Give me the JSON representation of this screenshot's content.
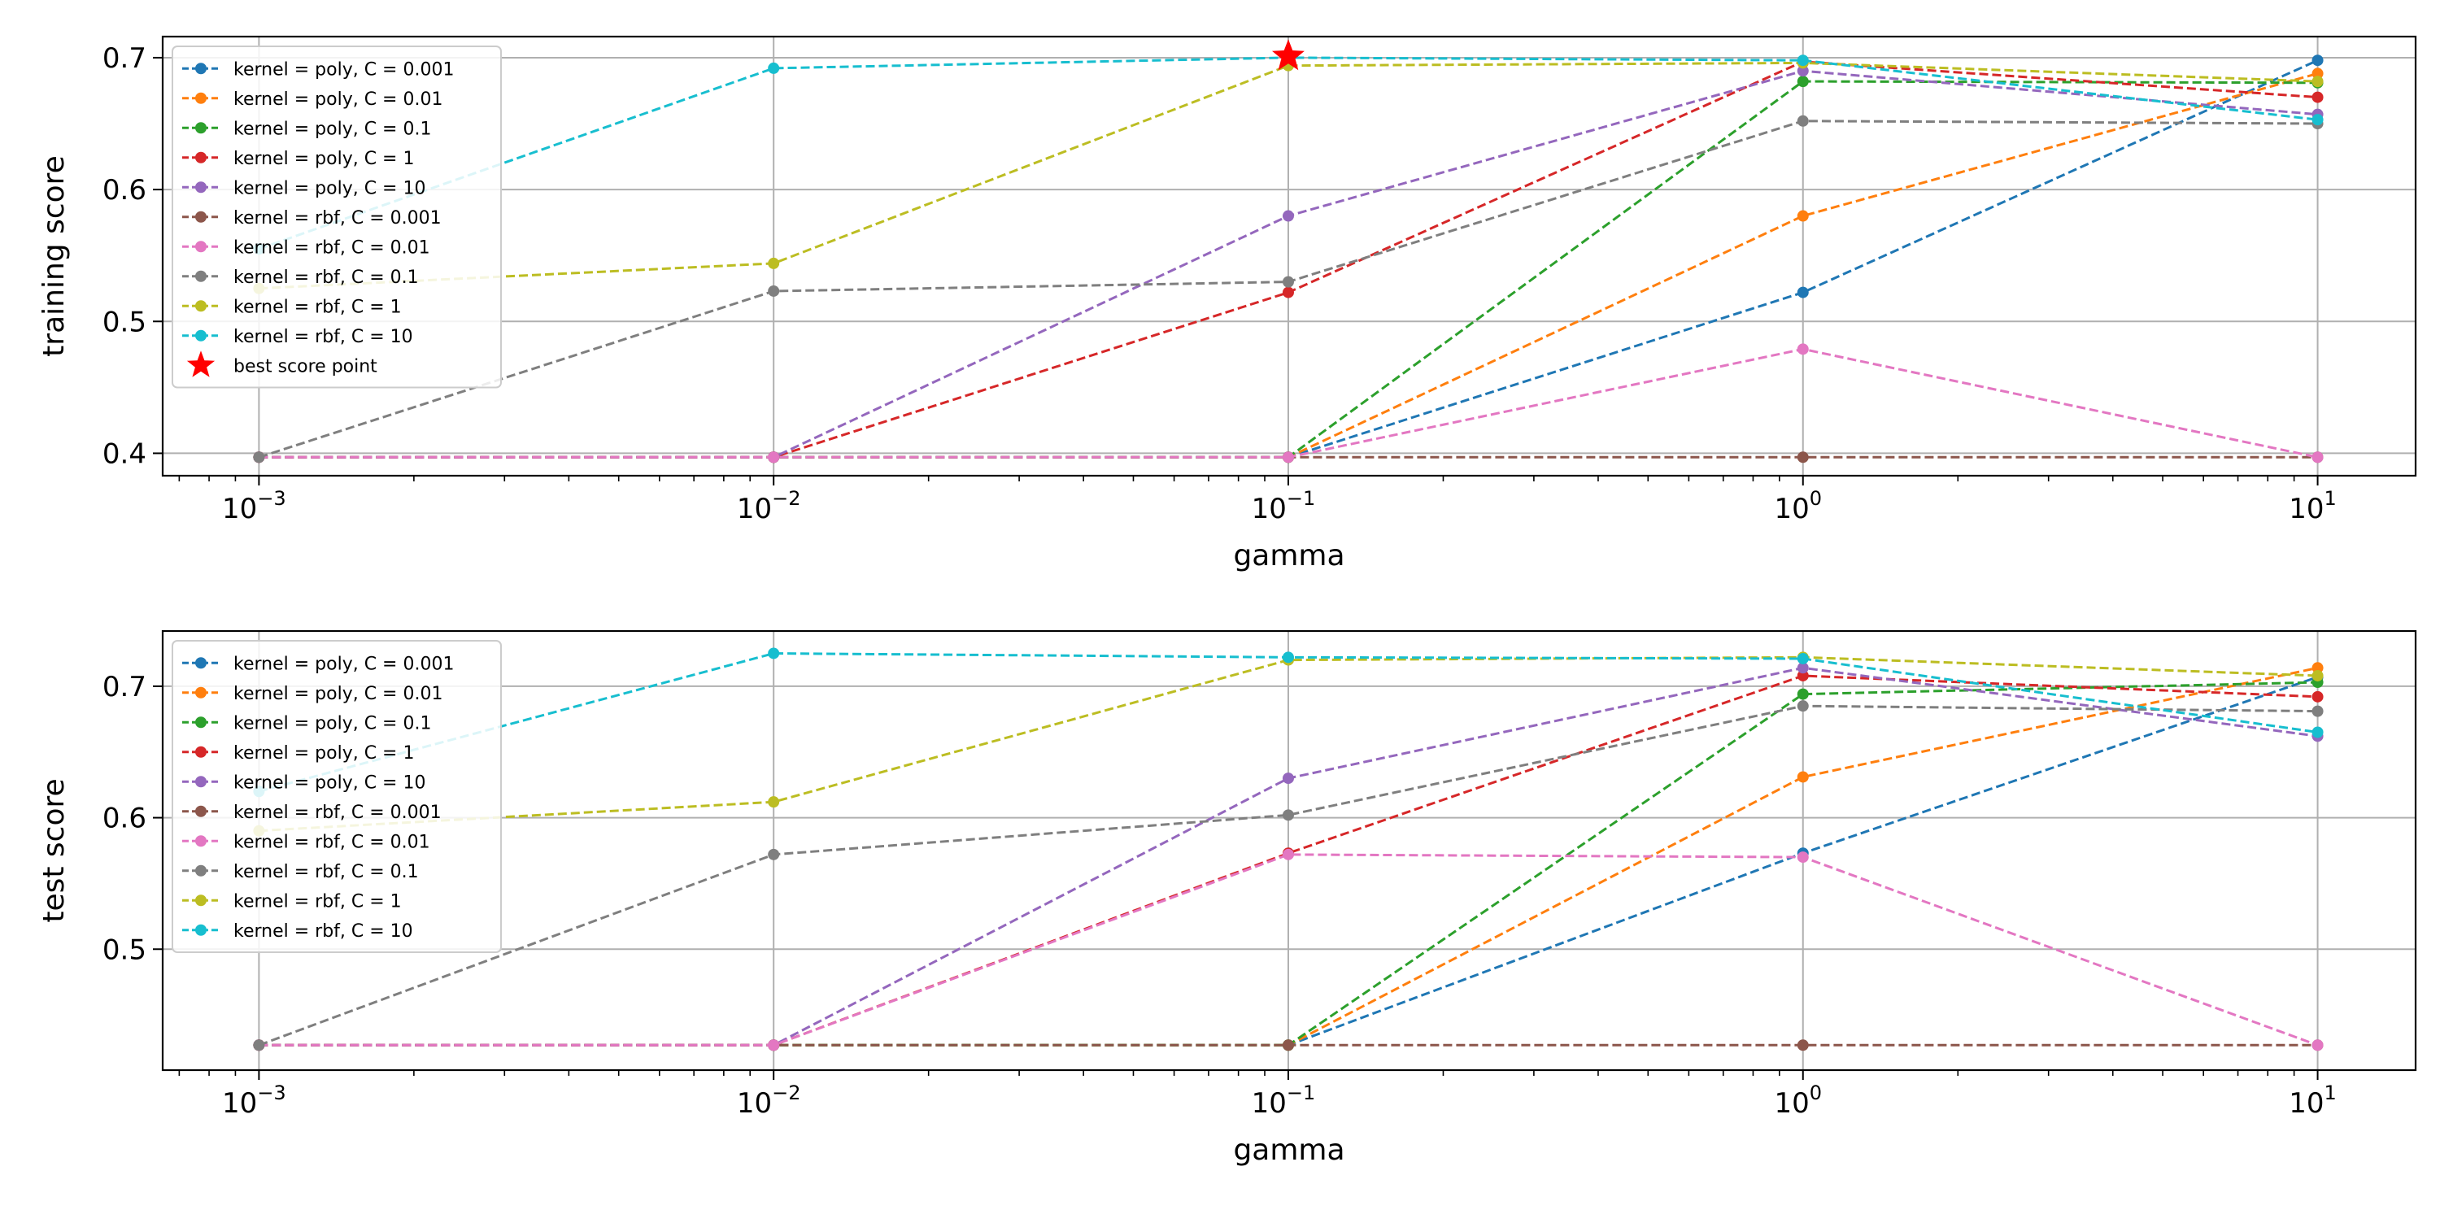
{
  "chart_data": [
    {
      "type": "line",
      "xscale": "log",
      "xlabel": "gamma",
      "ylabel": "training score",
      "xlim": [
        0.00065,
        15.5
      ],
      "ylim": [
        0.383,
        0.716
      ],
      "x": [
        0.001,
        0.01,
        0.1,
        1,
        10
      ],
      "x_ticks": [
        {
          "value": 0.001,
          "base": "10",
          "exp": "−3"
        },
        {
          "value": 0.01,
          "base": "10",
          "exp": "−2"
        },
        {
          "value": 0.1,
          "base": "10",
          "exp": "−1"
        },
        {
          "value": 1,
          "base": "10",
          "exp": "0"
        },
        {
          "value": 10,
          "base": "10",
          "exp": "1"
        }
      ],
      "y_ticks": [
        {
          "value": 0.4,
          "label": "0.4"
        },
        {
          "value": 0.5,
          "label": "0.5"
        },
        {
          "value": 0.6,
          "label": "0.6"
        },
        {
          "value": 0.7,
          "label": "0.7"
        }
      ],
      "grid": true,
      "legend": "upper-left",
      "series": [
        {
          "name": "kernel = poly, C = 0.001",
          "color": "#1f77b4",
          "values": [
            0.397,
            0.397,
            0.397,
            0.522,
            0.698
          ]
        },
        {
          "name": "kernel = poly, C = 0.01",
          "color": "#ff7f0e",
          "values": [
            0.397,
            0.397,
            0.397,
            0.58,
            0.688
          ]
        },
        {
          "name": "kernel = poly, C = 0.1",
          "color": "#2ca02c",
          "values": [
            0.397,
            0.397,
            0.397,
            0.682,
            0.681
          ]
        },
        {
          "name": "kernel = poly, C = 1",
          "color": "#d62728",
          "values": [
            0.397,
            0.397,
            0.522,
            0.697,
            0.67
          ]
        },
        {
          "name": "kernel = poly, C = 10",
          "color": "#9467bd",
          "values": [
            0.397,
            0.397,
            0.58,
            0.69,
            0.657
          ]
        },
        {
          "name": "kernel = rbf, C = 0.001",
          "color": "#8c564b",
          "values": [
            0.397,
            0.397,
            0.397,
            0.397,
            0.397
          ]
        },
        {
          "name": "kernel = rbf, C = 0.01",
          "color": "#e377c2",
          "values": [
            0.397,
            0.397,
            0.397,
            0.479,
            0.397
          ]
        },
        {
          "name": "kernel = rbf, C = 0.1",
          "color": "#7f7f7f",
          "values": [
            0.397,
            0.523,
            0.53,
            0.652,
            0.65
          ]
        },
        {
          "name": "kernel = rbf, C = 1",
          "color": "#bcbd22",
          "values": [
            0.525,
            0.544,
            0.694,
            0.696,
            0.682
          ]
        },
        {
          "name": "kernel = rbf, C = 10",
          "color": "#17becf",
          "values": [
            0.555,
            0.692,
            0.7,
            0.698,
            0.653
          ]
        }
      ],
      "best_point": {
        "label": "best score point",
        "color": "#ff0000",
        "x": 0.1,
        "y": 0.701
      }
    },
    {
      "type": "line",
      "xscale": "log",
      "xlabel": "gamma",
      "ylabel": "test score",
      "xlim": [
        0.00065,
        15.5
      ],
      "ylim": [
        0.408,
        0.742
      ],
      "x": [
        0.001,
        0.01,
        0.1,
        1,
        10
      ],
      "x_ticks": [
        {
          "value": 0.001,
          "base": "10",
          "exp": "−3"
        },
        {
          "value": 0.01,
          "base": "10",
          "exp": "−2"
        },
        {
          "value": 0.1,
          "base": "10",
          "exp": "−1"
        },
        {
          "value": 1,
          "base": "10",
          "exp": "0"
        },
        {
          "value": 10,
          "base": "10",
          "exp": "1"
        }
      ],
      "y_ticks": [
        {
          "value": 0.5,
          "label": "0.5"
        },
        {
          "value": 0.6,
          "label": "0.6"
        },
        {
          "value": 0.7,
          "label": "0.7"
        }
      ],
      "grid": true,
      "legend": "upper-left",
      "series": [
        {
          "name": "kernel = poly, C = 0.001",
          "color": "#1f77b4",
          "values": [
            0.427,
            0.427,
            0.427,
            0.573,
            0.707
          ]
        },
        {
          "name": "kernel = poly, C = 0.01",
          "color": "#ff7f0e",
          "values": [
            0.427,
            0.427,
            0.427,
            0.631,
            0.714
          ]
        },
        {
          "name": "kernel = poly, C = 0.1",
          "color": "#2ca02c",
          "values": [
            0.427,
            0.427,
            0.427,
            0.694,
            0.703
          ]
        },
        {
          "name": "kernel = poly, C = 1",
          "color": "#d62728",
          "values": [
            0.427,
            0.427,
            0.573,
            0.708,
            0.692
          ]
        },
        {
          "name": "kernel = poly, C = 10",
          "color": "#9467bd",
          "values": [
            0.427,
            0.427,
            0.63,
            0.714,
            0.662
          ]
        },
        {
          "name": "kernel = rbf, C = 0.001",
          "color": "#8c564b",
          "values": [
            0.427,
            0.427,
            0.427,
            0.427,
            0.427
          ]
        },
        {
          "name": "kernel = rbf, C = 0.01",
          "color": "#e377c2",
          "values": [
            0.427,
            0.427,
            0.572,
            0.57,
            0.427
          ]
        },
        {
          "name": "kernel = rbf, C = 0.1",
          "color": "#7f7f7f",
          "values": [
            0.427,
            0.572,
            0.602,
            0.685,
            0.681
          ]
        },
        {
          "name": "kernel = rbf, C = 1",
          "color": "#bcbd22",
          "values": [
            0.59,
            0.612,
            0.72,
            0.722,
            0.708
          ]
        },
        {
          "name": "kernel = rbf, C = 10",
          "color": "#17becf",
          "values": [
            0.62,
            0.725,
            0.722,
            0.721,
            0.665
          ]
        }
      ]
    }
  ]
}
